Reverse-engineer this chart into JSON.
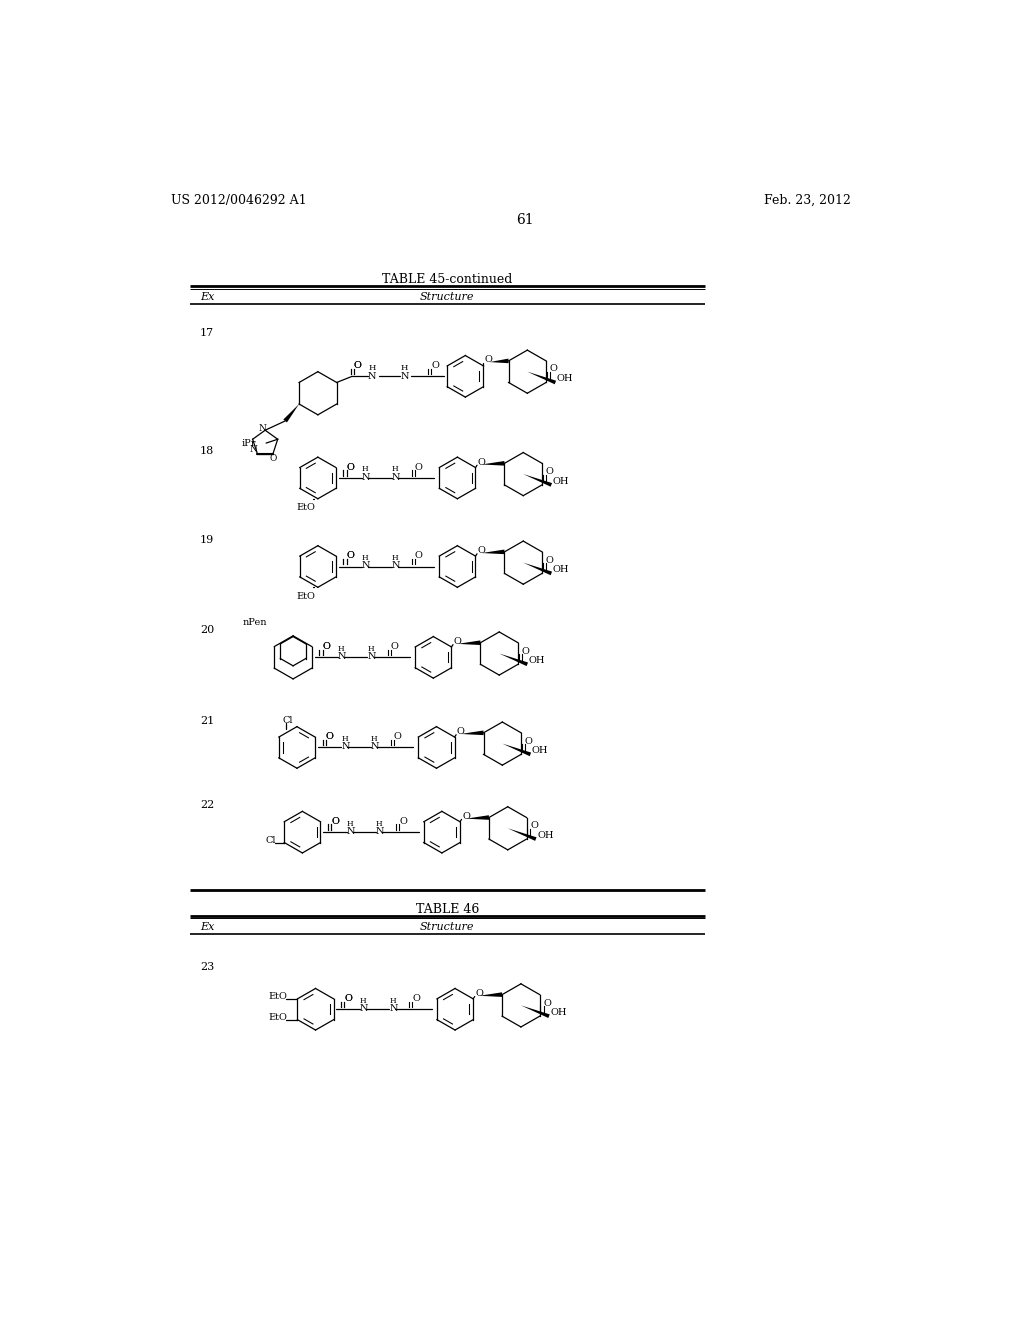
{
  "background_color": "#ffffff",
  "header_left": "US 2012/0046292 A1",
  "header_right": "Feb. 23, 2012",
  "page_number": "61",
  "table1_title": "TABLE 45-continued",
  "table2_title": "TABLE 46",
  "col_header": "Structure",
  "col_ex": "Ex"
}
